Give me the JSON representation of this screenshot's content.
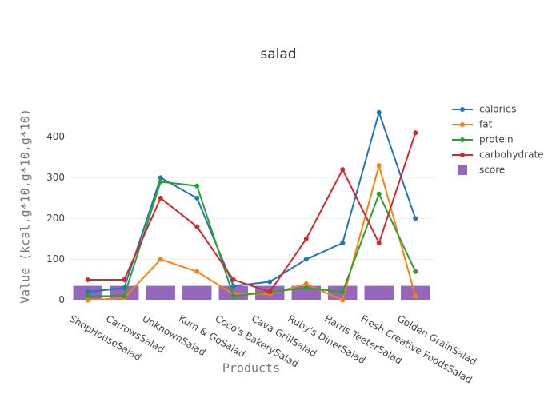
{
  "chart_data": {
    "type": "line",
    "title": "salad",
    "x_label": "Products",
    "y_label": "Value (kcal,g*10,g*10,g*10)",
    "categories": [
      "ShopHouseSalad",
      "CarrowsSalad",
      "UnknownSalad",
      "Kum & GoSalad",
      "Coco's BakerySalad",
      "Cava GrillSalad",
      "Ruby's DinerSalad",
      "Harris TeeterSalad",
      "Fresh Creative FoodsSalad",
      "Golden GrainSalad"
    ],
    "series": [
      {
        "name": "calories",
        "color": "#1f77b4",
        "type": "line",
        "values": [
          20,
          30,
          300,
          250,
          35,
          45,
          100,
          140,
          460,
          200
        ]
      },
      {
        "name": "fat",
        "color": "#ff7f0e",
        "type": "line",
        "values": [
          0,
          5,
          100,
          70,
          15,
          15,
          40,
          0,
          330,
          10
        ]
      },
      {
        "name": "protein",
        "color": "#2ca02c",
        "type": "line",
        "values": [
          10,
          10,
          290,
          280,
          10,
          20,
          30,
          20,
          260,
          70
        ]
      },
      {
        "name": "carbohydrate",
        "color": "#d62728",
        "type": "line",
        "values": [
          50,
          50,
          250,
          180,
          50,
          20,
          150,
          320,
          140,
          410
        ]
      },
      {
        "name": "score",
        "color": "#9467bd",
        "type": "bar",
        "values": [
          35,
          35,
          35,
          35,
          35,
          35,
          35,
          35,
          35,
          35
        ]
      }
    ],
    "ylim": [
      -5,
      485
    ],
    "yticks": [
      0,
      100,
      200,
      300,
      400
    ],
    "grid": true,
    "legend": "top-right"
  }
}
